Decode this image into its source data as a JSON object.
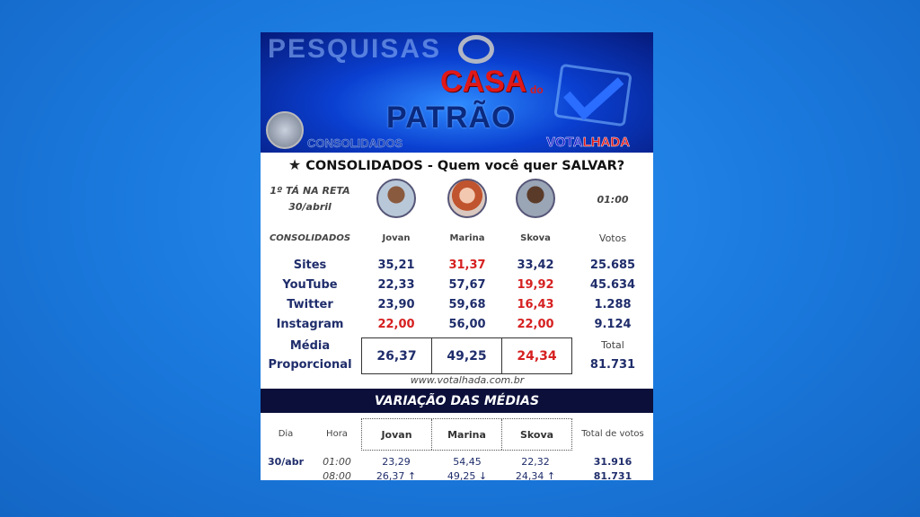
{
  "banner": {
    "background_word": "PESQUISAS",
    "show_title_1": "CASA",
    "show_title_do": "do",
    "show_title_2": "PATRÃO",
    "tag": "CONSOLIDADOS",
    "brand_1": "VOTA",
    "brand_2": "LHADA"
  },
  "title": {
    "icon": "star-icon",
    "text": "CONSOLIDADOS - Quem você quer SALVAR?"
  },
  "round": {
    "line1": "1º TÁ NA RETA",
    "line2": "30/abril",
    "time": "01:00"
  },
  "header": {
    "label": "CONSOLIDADOS",
    "candidates": [
      "Jovan",
      "Marina",
      "Skova"
    ],
    "votes": "Votos"
  },
  "rows": [
    {
      "source": "Sites",
      "values": [
        "35,21",
        "31,37",
        "33,42"
      ],
      "lowest": 1,
      "votes": "25.685"
    },
    {
      "source": "YouTube",
      "values": [
        "22,33",
        "57,67",
        "19,92"
      ],
      "lowest": 2,
      "votes": "45.634"
    },
    {
      "source": "Twitter",
      "values": [
        "23,90",
        "59,68",
        "16,43"
      ],
      "lowest": 2,
      "votes": "1.288"
    },
    {
      "source": "Instagram",
      "values": [
        "22,00",
        "56,00",
        "22,00"
      ],
      "lowest": [
        0,
        2
      ],
      "votes": "9.124"
    }
  ],
  "average": {
    "label1": "Média",
    "label2": "Proporcional",
    "values": [
      "26,37",
      "49,25",
      "24,34"
    ],
    "total_label": "Total",
    "total": "81.731"
  },
  "website": "www.votalhada.com.br",
  "variation": {
    "title": "VARIAÇÃO DAS MÉDIAS",
    "headers": {
      "day": "Dia",
      "hour": "Hora",
      "candidates": [
        "Jovan",
        "Marina",
        "Skova"
      ],
      "total": "Total de votos"
    },
    "rows": [
      {
        "day": "30/abr",
        "hour": "01:00",
        "values": [
          "23,29",
          "54,45",
          "22,32"
        ],
        "total": "31.916"
      },
      {
        "day": "",
        "hour": "08:00",
        "values": [
          "26,37 ↑",
          "49,25 ↓",
          "24,34 ↑"
        ],
        "total": "81.731"
      }
    ]
  },
  "colors": {
    "background": "#1a78dc",
    "navy": "#1f2d6b",
    "red": "#d62020",
    "bar": "#0b0f3a"
  }
}
